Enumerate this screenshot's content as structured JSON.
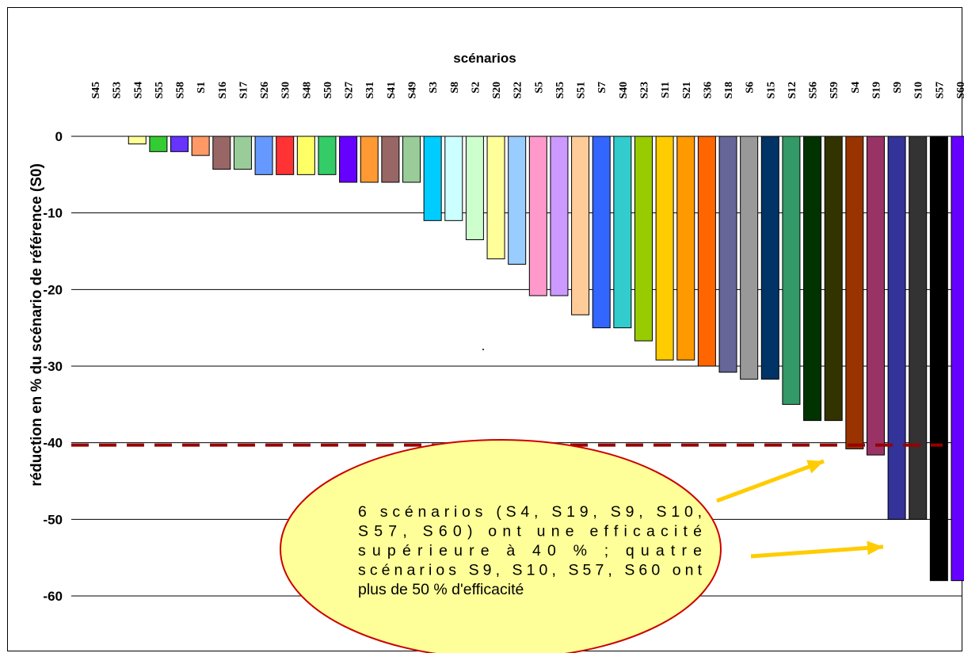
{
  "chart_data": {
    "type": "bar",
    "title": "scénarios",
    "ylabel": "réduction en % du scénario de référence (S0)",
    "ylim": [
      -60,
      0
    ],
    "yticks": [
      0,
      -10,
      -20,
      -30,
      -40,
      -50,
      -60
    ],
    "ytick_labels": [
      "0",
      "-10",
      "-20",
      "-30",
      "-40",
      "-50",
      "-60"
    ],
    "grid": true,
    "categories": [
      "S45",
      "S53",
      "S54",
      "S55",
      "S58",
      "S1",
      "S16",
      "S17",
      "S26",
      "S30",
      "S48",
      "S50",
      "S27",
      "S31",
      "S41",
      "S49",
      "S3",
      "S8",
      "S2",
      "S20",
      "S22",
      "S5",
      "S35",
      "S51",
      "S7",
      "S40",
      "S23",
      "S11",
      "S21",
      "S36",
      "S18",
      "S6",
      "S15",
      "S12",
      "S56",
      "S59",
      "S4",
      "S19",
      "S9",
      "S10",
      "S57",
      "S60"
    ],
    "values": [
      0,
      0,
      -1,
      -2,
      -2,
      -2.5,
      -4.3,
      -4.3,
      -5,
      -5,
      -5,
      -5,
      -6,
      -6,
      -6,
      -6,
      -11,
      -11,
      -13.5,
      -16,
      -16.7,
      -20.8,
      -20.8,
      -23.3,
      -25,
      -25,
      -26.7,
      -29.2,
      -29.2,
      -30,
      -30.8,
      -31.7,
      -31.7,
      -35,
      -37.1,
      -37.1,
      -40.8,
      -41.6,
      -50,
      -50,
      -58,
      -58
    ],
    "colors": [
      "#ffffff",
      "#ffffff",
      "#ffff99",
      "#33cc33",
      "#6633ff",
      "#ff9966",
      "#996666",
      "#99cc99",
      "#6699ff",
      "#ff3333",
      "#ffff66",
      "#33cc66",
      "#6600ff",
      "#ff9933",
      "#996666",
      "#99cc99",
      "#00ccff",
      "#ccffff",
      "#ccffcc",
      "#ffff99",
      "#99ccff",
      "#ff99cc",
      "#cc99ff",
      "#ffcc99",
      "#3366ff",
      "#33cccc",
      "#99cc00",
      "#ffcc00",
      "#ff9900",
      "#ff6600",
      "#666699",
      "#999999",
      "#003366",
      "#339966",
      "#003300",
      "#333300",
      "#993300",
      "#993366",
      "#333399",
      "#333333",
      "#000000",
      "#6600ff"
    ],
    "threshold": {
      "value": -40.3,
      "color": "#990000"
    },
    "annotation": {
      "lines": [
        "6 scénarios (S4, S19, S9, S10,",
        "S57, S60) ont une efficacité",
        "supérieure à 40 % ; quatre",
        "scénarios S9, S10, S57, S60 ont",
        "plus de 50 % d'efficacité"
      ],
      "fill": "#ffff99",
      "border": "#cc0000",
      "arrow_color": "#ffcc00"
    }
  }
}
